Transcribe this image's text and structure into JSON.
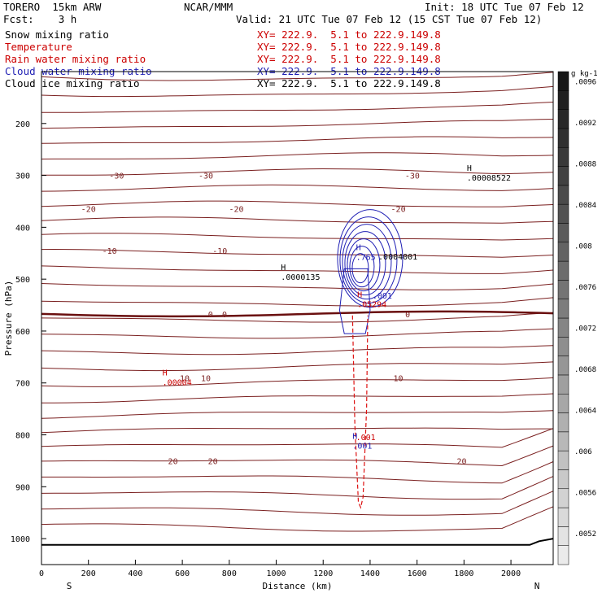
{
  "header": {
    "model": "TORERO  15km ARW",
    "center": "NCAR/MMM",
    "init": "Init: 18 UTC Tue 07 Feb 12",
    "fcst": "Fcst:    3 h",
    "valid": "Valid: 21 UTC Tue 07 Feb 12 (15 CST Tue 07 Feb 12)"
  },
  "fields": [
    {
      "name": "Snow mixing ratio",
      "xy": "XY= 222.9.  5.1 to 222.9.149.8",
      "color": "#000000",
      "xy_color": "#cc0000"
    },
    {
      "name": "Temperature",
      "xy": "XY= 222.9.  5.1 to 222.9.149.8",
      "color": "#cc0000",
      "xy_color": "#cc0000"
    },
    {
      "name": "Rain water mixing ratio",
      "xy": "XY= 222.9.  5.1 to 222.9.149.8",
      "color": "#cc0000",
      "xy_color": "#cc0000"
    },
    {
      "name": "Cloud water mixing ratio",
      "xy": "XY= 222.9.  5.1 to 222.9.149.8",
      "color": "#1f1fb4",
      "xy_color": "#1f1fb4"
    },
    {
      "name": "Cloud ice mixing ratio",
      "xy": "XY= 222.9.  5.1 to 222.9.149.8",
      "color": "#000000",
      "xy_color": "#000000"
    }
  ],
  "chart_data": {
    "type": "cross-section contour",
    "xlabel": "Distance (km)",
    "ylabel": "Pressure (hPa)",
    "xlim": [
      0,
      2180
    ],
    "ylim": [
      1050,
      100
    ],
    "x_ticks": [
      0,
      200,
      400,
      600,
      800,
      1000,
      1200,
      1400,
      1600,
      1800,
      2000
    ],
    "y_ticks": [
      200,
      300,
      400,
      500,
      600,
      700,
      800,
      900,
      1000
    ],
    "left_end": "S",
    "right_end": "N",
    "temperature_contours": [
      {
        "value": -30,
        "label": "-30",
        "p": 300,
        "label_x": [
          320,
          700,
          1580
        ]
      },
      {
        "value": -20,
        "label": "-20",
        "p": 364,
        "label_x": [
          200,
          830,
          1520
        ]
      },
      {
        "value": -10,
        "label": "-10",
        "p": 445,
        "label_x": [
          290,
          760
        ]
      },
      {
        "value": 0,
        "label": "0",
        "p": 567,
        "label_x": [
          720,
          780,
          1560
        ]
      },
      {
        "value": 10,
        "label": "10",
        "p": 690,
        "label_x": [
          610,
          700,
          1520
        ]
      },
      {
        "value": 20,
        "label": "20",
        "p": 850,
        "label_x": [
          560,
          730,
          1790
        ]
      }
    ],
    "extrema": [
      {
        "type": "H",
        "value": ".00008522",
        "x": 1812,
        "p": 305,
        "color": "#000000"
      },
      {
        "type": "H",
        "value": ".0000135",
        "x": 1020,
        "p": 497,
        "color": "#000000"
      },
      {
        "type": "H",
        "value": ".00004",
        "x": 515,
        "p": 700,
        "color": "#cc0000"
      },
      {
        "type": "H",
        "value": ".765",
        "x": 1340,
        "p": 458,
        "color": "#1f1fb4"
      },
      {
        "type": "H",
        "value": ".05294",
        "x": 1345,
        "p": 549,
        "color": "#cc0000"
      },
      {
        "type": "H",
        "value": ".001",
        "x": 1325,
        "p": 822,
        "color": "#1f1fb4"
      }
    ],
    "contour_labels": [
      {
        "text": ".001",
        "x": 1410,
        "p": 537,
        "color": "#1f1fb4"
      },
      {
        "text": ".001",
        "x": 1340,
        "p": 810,
        "color": "#cc0000"
      },
      {
        "text": ".0004001",
        "x": 1435,
        "p": 462,
        "color": "#000000"
      }
    ],
    "colorbar": {
      "unit": "g kg-1",
      "levels": [
        ".0052",
        ".0056",
        ".006",
        ".0064",
        ".0068",
        ".0072",
        ".0076",
        ".008",
        ".0084",
        ".0088",
        ".0092",
        ".0096"
      ]
    }
  }
}
